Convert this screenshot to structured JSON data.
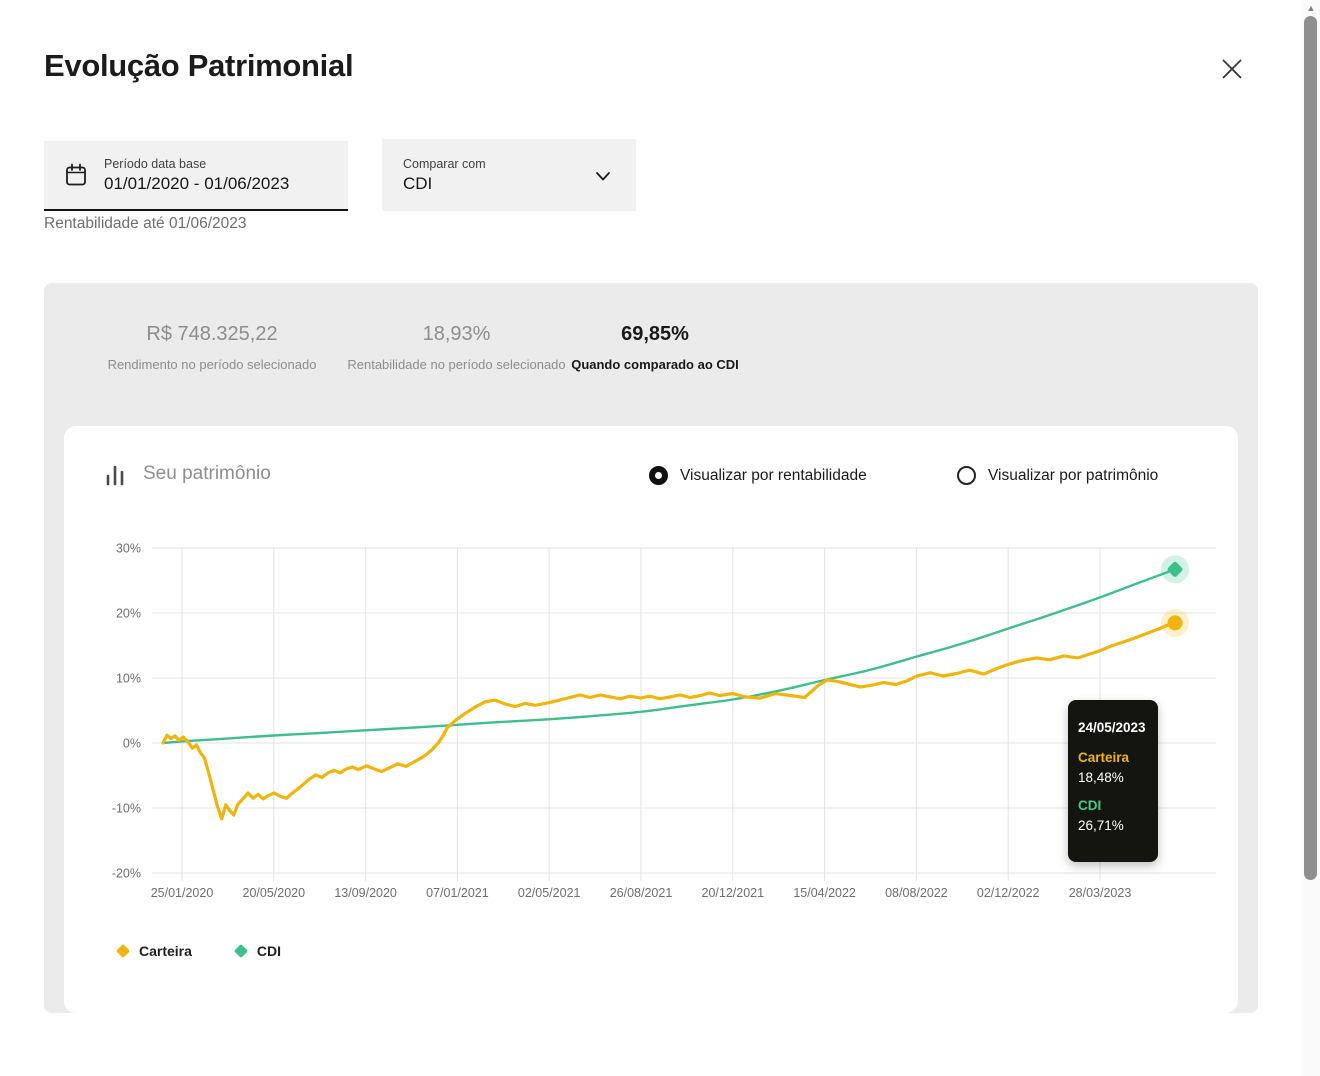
{
  "modal": {
    "title": "Evolução Patrimonial"
  },
  "filters": {
    "period": {
      "label": "Período data base",
      "value": "01/01/2020 - 01/06/2023"
    },
    "period_helper": "Rentabilidade até 01/06/2023",
    "compare": {
      "label": "Comparar com",
      "value": "CDI"
    }
  },
  "stats": [
    {
      "value": "R$ 748.325,22",
      "label": "Rendimento no período selecionado"
    },
    {
      "value": "18,93%",
      "label": "Rentabilidade no período selecionado"
    },
    {
      "value": "69,85%",
      "label": "Quando comparado ao CDI"
    }
  ],
  "chart_header": {
    "title": "Seu patrimônio",
    "options": [
      {
        "label": "Visualizar por rentabilidade",
        "selected": true
      },
      {
        "label": "Visualizar por patrimônio",
        "selected": false
      }
    ]
  },
  "tooltip": {
    "date": "24/05/2023",
    "items": [
      {
        "name": "Carteira",
        "value": "18,48%",
        "color": "#F0B40D"
      },
      {
        "name": "CDI",
        "value": "26,71%",
        "color": "#3FCE8E"
      }
    ]
  },
  "legend": [
    {
      "label": "Carteira",
      "color": "#F0B40D"
    },
    {
      "label": "CDI",
      "color": "#3DBE8B"
    }
  ],
  "colors": {
    "gold": "#F0B40D",
    "green": "#3DBE8B",
    "grid": "#E3E3E3",
    "axis_text": "#6d6d6d"
  },
  "chart_data": {
    "type": "line",
    "title": "Seu patrimônio",
    "y_unit": "%",
    "ylim": [
      -20,
      30
    ],
    "grid": true,
    "legend_position": "bottom-left",
    "y_ticks": [
      "30%",
      "20%",
      "10%",
      "0%",
      "-10%",
      "-20%"
    ],
    "y_tick_values": [
      30,
      20,
      10,
      0,
      -10,
      -20
    ],
    "x_ticks": [
      "25/01/2020",
      "20/05/2020",
      "13/09/2020",
      "07/01/2021",
      "02/05/2021",
      "26/08/2021",
      "20/12/2021",
      "15/04/2022",
      "08/08/2022",
      "02/12/2022",
      "28/03/2023"
    ],
    "x_end_date": "24/05/2023",
    "series": [
      {
        "name": "CDI",
        "color": "#3DBE8B",
        "marker": "diamond",
        "smooth": true,
        "end_value": 26.71,
        "points": [
          [
            0,
            0
          ],
          [
            0.019,
            0.25
          ],
          [
            0.05,
            0.55
          ],
          [
            0.109,
            1.15
          ],
          [
            0.15,
            1.5
          ],
          [
            0.2,
            1.95
          ],
          [
            0.25,
            2.4
          ],
          [
            0.291,
            2.8
          ],
          [
            0.33,
            3.2
          ],
          [
            0.381,
            3.65
          ],
          [
            0.42,
            4.1
          ],
          [
            0.472,
            4.8
          ],
          [
            0.52,
            5.8
          ],
          [
            0.563,
            6.7
          ],
          [
            0.61,
            8.1
          ],
          [
            0.654,
            9.7
          ],
          [
            0.7,
            11.3
          ],
          [
            0.745,
            13.3
          ],
          [
            0.79,
            15.3
          ],
          [
            0.835,
            17.6
          ],
          [
            0.88,
            19.9
          ],
          [
            0.926,
            22.4
          ],
          [
            0.96,
            24.4
          ],
          [
            1,
            26.71
          ]
        ]
      },
      {
        "name": "Carteira",
        "color": "#F0B40D",
        "marker": "circle",
        "smooth": false,
        "end_value": 18.48,
        "points": [
          [
            0,
            0
          ],
          [
            0.004,
            1.2
          ],
          [
            0.008,
            0.7
          ],
          [
            0.012,
            1.1
          ],
          [
            0.016,
            0.4
          ],
          [
            0.02,
            0.9
          ],
          [
            0.025,
            0.1
          ],
          [
            0.029,
            -0.8
          ],
          [
            0.033,
            -0.3
          ],
          [
            0.037,
            -1.5
          ],
          [
            0.041,
            -2.3
          ],
          [
            0.045,
            -4.5
          ],
          [
            0.05,
            -7.5
          ],
          [
            0.054,
            -9.8
          ],
          [
            0.058,
            -11.7
          ],
          [
            0.062,
            -9.5
          ],
          [
            0.066,
            -10.4
          ],
          [
            0.07,
            -11.1
          ],
          [
            0.074,
            -9.4
          ],
          [
            0.079,
            -8.6
          ],
          [
            0.084,
            -7.7
          ],
          [
            0.089,
            -8.5
          ],
          [
            0.094,
            -7.9
          ],
          [
            0.099,
            -8.6
          ],
          [
            0.104,
            -8.1
          ],
          [
            0.11,
            -7.7
          ],
          [
            0.116,
            -8.2
          ],
          [
            0.122,
            -8.5
          ],
          [
            0.127,
            -7.8
          ],
          [
            0.133,
            -7.1
          ],
          [
            0.139,
            -6.3
          ],
          [
            0.145,
            -5.5
          ],
          [
            0.151,
            -4.9
          ],
          [
            0.157,
            -5.3
          ],
          [
            0.163,
            -4.6
          ],
          [
            0.169,
            -4.2
          ],
          [
            0.175,
            -4.6
          ],
          [
            0.181,
            -4
          ],
          [
            0.187,
            -3.7
          ],
          [
            0.193,
            -4.1
          ],
          [
            0.201,
            -3.5
          ],
          [
            0.209,
            -4
          ],
          [
            0.216,
            -4.4
          ],
          [
            0.224,
            -3.8
          ],
          [
            0.232,
            -3.2
          ],
          [
            0.24,
            -3.6
          ],
          [
            0.248,
            -2.9
          ],
          [
            0.254,
            -2.4
          ],
          [
            0.26,
            -1.8
          ],
          [
            0.266,
            -1
          ],
          [
            0.272,
            0
          ],
          [
            0.277,
            1.2
          ],
          [
            0.281,
            2.4
          ],
          [
            0.289,
            3.5
          ],
          [
            0.298,
            4.5
          ],
          [
            0.308,
            5.5
          ],
          [
            0.318,
            6.3
          ],
          [
            0.328,
            6.6
          ],
          [
            0.338,
            6
          ],
          [
            0.348,
            5.6
          ],
          [
            0.358,
            6.1
          ],
          [
            0.368,
            5.8
          ],
          [
            0.381,
            6.2
          ],
          [
            0.392,
            6.6
          ],
          [
            0.402,
            7
          ],
          [
            0.412,
            7.4
          ],
          [
            0.422,
            7
          ],
          [
            0.432,
            7.4
          ],
          [
            0.442,
            7.1
          ],
          [
            0.452,
            6.8
          ],
          [
            0.461,
            7.2
          ],
          [
            0.472,
            6.9
          ],
          [
            0.481,
            7.2
          ],
          [
            0.491,
            6.8
          ],
          [
            0.501,
            7.1
          ],
          [
            0.511,
            7.4
          ],
          [
            0.521,
            7
          ],
          [
            0.531,
            7.3
          ],
          [
            0.54,
            7.7
          ],
          [
            0.55,
            7.3
          ],
          [
            0.563,
            7.6
          ],
          [
            0.575,
            7.1
          ],
          [
            0.59,
            6.9
          ],
          [
            0.605,
            7.6
          ],
          [
            0.62,
            7.3
          ],
          [
            0.634,
            7
          ],
          [
            0.647,
            8.8
          ],
          [
            0.656,
            9.7
          ],
          [
            0.666,
            9.5
          ],
          [
            0.677,
            9.1
          ],
          [
            0.689,
            8.6
          ],
          [
            0.701,
            8.9
          ],
          [
            0.712,
            9.3
          ],
          [
            0.724,
            9
          ],
          [
            0.736,
            9.6
          ],
          [
            0.745,
            10.3
          ],
          [
            0.758,
            10.8
          ],
          [
            0.771,
            10.3
          ],
          [
            0.784,
            10.7
          ],
          [
            0.797,
            11.2
          ],
          [
            0.811,
            10.6
          ],
          [
            0.823,
            11.4
          ],
          [
            0.835,
            12.1
          ],
          [
            0.849,
            12.7
          ],
          [
            0.863,
            13.1
          ],
          [
            0.876,
            12.8
          ],
          [
            0.89,
            13.4
          ],
          [
            0.904,
            13.1
          ],
          [
            0.916,
            13.7
          ],
          [
            0.926,
            14.2
          ],
          [
            0.938,
            15
          ],
          [
            0.95,
            15.6
          ],
          [
            0.961,
            16.2
          ],
          [
            0.973,
            16.9
          ],
          [
            0.983,
            17.5
          ],
          [
            0.992,
            18.1
          ],
          [
            1,
            18.48
          ]
        ]
      }
    ]
  }
}
